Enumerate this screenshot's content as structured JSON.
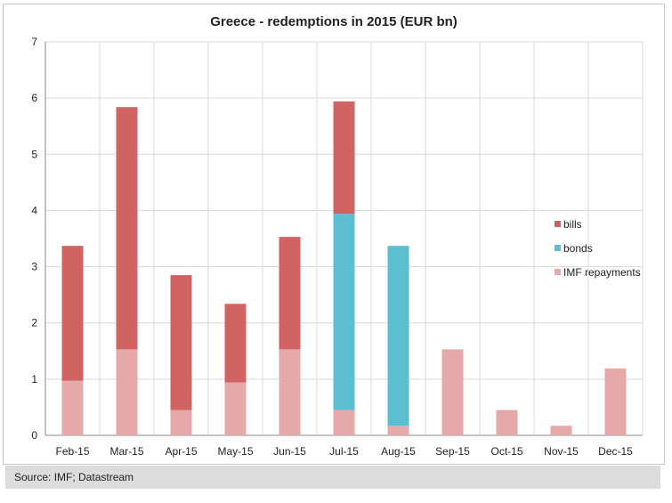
{
  "chart_data": {
    "type": "bar",
    "stacked": true,
    "title": "Greece - redemptions in 2015 (EUR bn)",
    "xlabel": "",
    "ylabel": "",
    "ylim": [
      0,
      7
    ],
    "yticks": [
      0,
      1,
      2,
      3,
      4,
      5,
      6,
      7
    ],
    "grid": true,
    "legend_position": "right",
    "categories": [
      "Feb-15",
      "Mar-15",
      "Apr-15",
      "May-15",
      "Jun-15",
      "Jul-15",
      "Aug-15",
      "Sep-15",
      "Oct-15",
      "Nov-15",
      "Dec-15"
    ],
    "series": [
      {
        "name": "IMF repayments",
        "color": "#e6a9a9",
        "values": [
          0.97,
          1.53,
          0.45,
          0.94,
          1.53,
          0.45,
          0.17,
          1.53,
          0.45,
          0.17,
          1.19
        ]
      },
      {
        "name": "bonds",
        "color": "#5bbfd1",
        "values": [
          0,
          0,
          0,
          0,
          0,
          3.49,
          3.2,
          0,
          0,
          0,
          0
        ]
      },
      {
        "name": "bills",
        "color": "#cf6463",
        "values": [
          2.4,
          4.31,
          2.4,
          1.4,
          2.0,
          2.0,
          0,
          0,
          0,
          0,
          0
        ]
      }
    ],
    "legend_order": [
      "bills",
      "bonds",
      "IMF repayments"
    ]
  },
  "source": "Source: IMF; Datastream"
}
